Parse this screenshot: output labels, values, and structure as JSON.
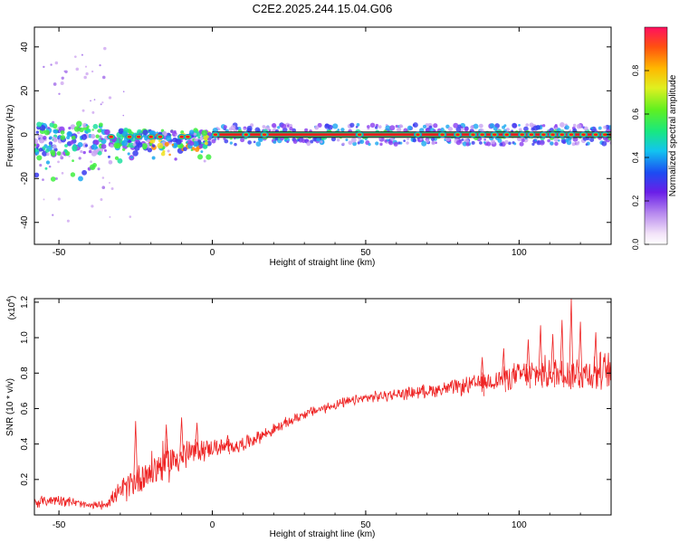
{
  "title": "C2E2.2025.244.15.04.G06",
  "chart_data": [
    {
      "type": "heatmap",
      "panel": "spectrogram",
      "xlabel": "Height of straight line (km)",
      "ylabel": "Frequency (Hz)",
      "xlim": [
        -58,
        130
      ],
      "ylim": [
        -50,
        49
      ],
      "xticks": [
        -50,
        0,
        50,
        100
      ],
      "yticks": [
        -40,
        -20,
        0,
        20,
        40
      ],
      "grid": false,
      "colorbar": {
        "label": "Normalized spectral amplitude",
        "range": [
          0,
          1
        ],
        "ticks": [
          0.0,
          0.2,
          0.4,
          0.6,
          0.8
        ]
      },
      "main_band": {
        "x_start": 0,
        "x_end": 130,
        "frequency_hz": 0,
        "amplitude": 1.0
      },
      "scattered_band": {
        "x_start": -58,
        "x_end": 0,
        "frequency_hz_center": -2,
        "spread_hz": [
          -18,
          6
        ]
      },
      "hotspots_x": [
        -33,
        -27,
        -24,
        -20,
        -17,
        -10,
        -8,
        1,
        11,
        17,
        48,
        67,
        75,
        80,
        85,
        88,
        92,
        96,
        101,
        104,
        108,
        111,
        114,
        117,
        121,
        125,
        128
      ]
    },
    {
      "type": "line",
      "panel": "snr",
      "xlabel": "Height of straight line (km)",
      "ylabel": "SNR (10 * v/v)",
      "y_multiplier_label": "(x10",
      "y_multiplier_exp": "4",
      "xlim": [
        -58,
        130
      ],
      "ylim": [
        0,
        12200
      ],
      "xticks": [
        -50,
        0,
        50,
        100
      ],
      "yticks": [
        0.2,
        0.4,
        0.6,
        0.8,
        1.0,
        1.2
      ],
      "grid": false,
      "series": [
        {
          "name": "SNR",
          "color": "#ee2222",
          "x": [
            -58,
            -50,
            -40,
            -35,
            -30,
            -25,
            -20,
            -15,
            -10,
            -5,
            0,
            5,
            10,
            20,
            30,
            40,
            50,
            60,
            70,
            80,
            90,
            100,
            110,
            120,
            130
          ],
          "mean": [
            700,
            900,
            500,
            600,
            1300,
            2000,
            2500,
            3000,
            3300,
            3600,
            3800,
            3800,
            4000,
            4800,
            5700,
            6200,
            6600,
            6800,
            7000,
            7200,
            7500,
            7900,
            8000,
            8000,
            8100
          ],
          "spread": [
            350,
            400,
            250,
            300,
            700,
            1200,
            1400,
            1400,
            1200,
            900,
            600,
            600,
            500,
            400,
            350,
            350,
            350,
            400,
            450,
            550,
            700,
            900,
            1100,
            1300,
            1300
          ],
          "peaks_x": [
            -25,
            -15,
            -10,
            -5,
            5,
            88,
            95,
            103,
            107,
            111,
            114,
            117,
            120,
            125
          ],
          "peaks_y": [
            5300,
            5100,
            5500,
            5200,
            4500,
            8900,
            9400,
            9900,
            10700,
            10200,
            11000,
            12200,
            10900,
            10300
          ]
        }
      ]
    }
  ]
}
